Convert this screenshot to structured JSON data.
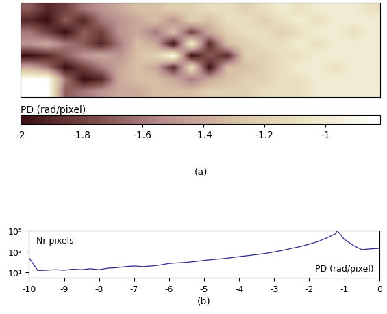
{
  "chart_data": [
    {
      "type": "heatmap",
      "xlabel": "(a)",
      "tick_labels": false,
      "cells": [
        [
          -1.7,
          -1.9,
          -1.8,
          -1.6,
          -1.5,
          -1.4,
          -1.3,
          -1.3,
          -1.2,
          -1.2,
          -1.1,
          -1.1,
          -1.2,
          -1.1,
          -1.0,
          -1.1,
          -1.0,
          -1.0,
          -1.0,
          -1.1
        ],
        [
          -1.9,
          -2.0,
          -1.7,
          -1.9,
          -1.6,
          -1.5,
          -1.4,
          -1.3,
          -1.5,
          -1.2,
          -1.3,
          -1.1,
          -1.1,
          -1.2,
          -1.1,
          -1.0,
          -1.1,
          -1.0,
          -1.0,
          -1.0
        ],
        [
          -1.6,
          -1.8,
          -2.0,
          -1.7,
          -1.8,
          -1.5,
          -1.4,
          -1.6,
          -1.3,
          -1.8,
          -1.4,
          -1.2,
          -1.1,
          -1.1,
          -1.2,
          -1.1,
          -1.0,
          -1.0,
          -1.1,
          -1.0
        ],
        [
          -1.5,
          -1.4,
          -1.6,
          -1.7,
          -1.9,
          -1.6,
          -1.3,
          -1.4,
          -2.0,
          -1.0,
          -1.9,
          -1.3,
          -1.2,
          -1.1,
          -1.1,
          -1.0,
          -1.1,
          -1.0,
          -1.0,
          -1.0
        ],
        [
          -2.0,
          -1.9,
          -1.7,
          -1.5,
          -1.4,
          -1.5,
          -1.3,
          -1.2,
          -0.9,
          -2.0,
          -1.7,
          -1.9,
          -1.2,
          -1.2,
          -1.1,
          -1.1,
          -1.0,
          -1.0,
          -1.0,
          -1.0
        ],
        [
          -1.4,
          -1.6,
          -2.0,
          -1.8,
          -1.6,
          -1.4,
          -1.3,
          -1.4,
          -1.9,
          -1.1,
          -2.0,
          -1.3,
          -1.3,
          -1.2,
          -1.1,
          -1.0,
          -1.0,
          -1.1,
          -1.0,
          -1.0
        ],
        [
          -0.82,
          -0.82,
          -1.6,
          -2.0,
          -1.9,
          -1.4,
          -1.3,
          -1.3,
          -1.4,
          -1.6,
          -1.4,
          -1.3,
          -1.2,
          -1.2,
          -1.1,
          -1.1,
          -1.0,
          -1.0,
          -1.0,
          -1.0
        ],
        [
          -0.82,
          -0.82,
          -1.7,
          -1.6,
          -1.5,
          -1.4,
          -1.4,
          -1.3,
          -1.3,
          -1.3,
          -1.2,
          -1.2,
          -1.2,
          -1.1,
          -1.1,
          -1.1,
          -1.0,
          -1.0,
          -1.0,
          -1.0
        ]
      ],
      "colorbar_label": "PD (rad/pixel)",
      "colorbar_range": [
        -2,
        -0.82
      ],
      "colorbar_ticks": [
        -2,
        -1.8,
        -1.6,
        -1.4,
        -1.2,
        -1
      ]
    },
    {
      "type": "line",
      "xlabel": "(b)",
      "log": "y",
      "color": "#2b2b8c",
      "annotations": [
        "Nr pixels",
        "PD (rad/pixel)"
      ],
      "x": [
        -10,
        -9.75,
        -9.5,
        -9.25,
        -9,
        -8.75,
        -8.5,
        -8.25,
        -8,
        -7.75,
        -7.5,
        -7.25,
        -7,
        -6.75,
        -6.5,
        -6.25,
        -6,
        -5.75,
        -5.5,
        -5.25,
        -5,
        -4.75,
        -4.5,
        -4.25,
        -4,
        -3.75,
        -3.5,
        -3.25,
        -3,
        -2.75,
        -2.5,
        -2.25,
        -2,
        -1.75,
        -1.5,
        -1.25,
        -1.2,
        -1,
        -0.75,
        -0.5,
        -0.25,
        0
      ],
      "values": [
        250,
        15,
        16,
        18,
        16,
        20,
        18,
        22,
        18,
        25,
        28,
        35,
        40,
        35,
        40,
        50,
        70,
        80,
        90,
        110,
        140,
        170,
        200,
        250,
        320,
        400,
        500,
        650,
        900,
        1300,
        2000,
        3000,
        5000,
        9000,
        20000,
        50000,
        100000,
        15000,
        4000,
        1500,
        1800,
        2000
      ],
      "xlim": [
        -10,
        0
      ],
      "ylim": [
        3,
        100000
      ],
      "xticks": [
        -10,
        -9,
        -8,
        -7,
        -6,
        -5,
        -4,
        -3,
        -2,
        -1,
        0
      ],
      "yticks": [
        {
          "value": 10,
          "label": "10¹"
        },
        {
          "value": 1000,
          "label": "10³"
        },
        {
          "value": 100000,
          "label": "10⁵"
        }
      ]
    }
  ]
}
